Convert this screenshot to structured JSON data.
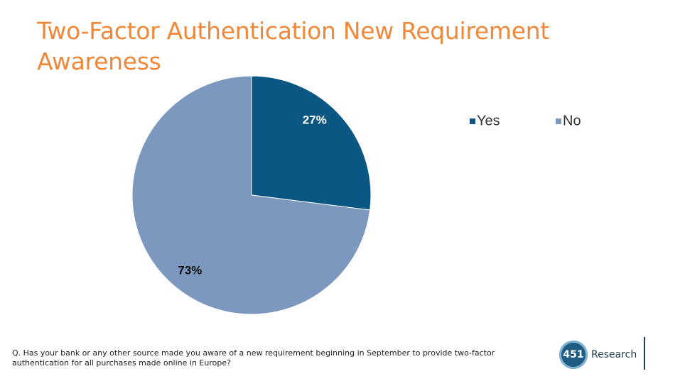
{
  "title": "Two-Factor Authentication New Requirement Awareness",
  "chart_data": {
    "type": "pie",
    "categories": [
      "Yes",
      "No"
    ],
    "values": [
      27,
      73
    ],
    "labels": [
      "27%",
      "73%"
    ],
    "colors": [
      "#0b5783",
      "#7d98bf"
    ],
    "label_colors": [
      "#ffffff",
      "#111111"
    ],
    "legend_position": "top-right",
    "start_angle_deg": 0,
    "direction": "clockwise"
  },
  "footnote": "Q. Has your bank or any other source made you aware of a new requirement beginning in September to provide two-factor authentication for all purchases made online in Europe?",
  "branding": {
    "logo_number": "451",
    "logo_text": "Research"
  }
}
